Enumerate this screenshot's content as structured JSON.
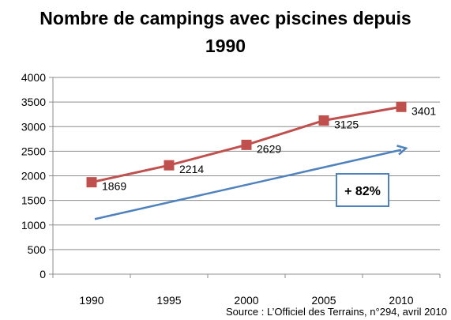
{
  "chart_data": {
    "type": "line",
    "title_line1": "Nombre de campings avec piscines depuis",
    "title_line2": "1990",
    "x": [
      "1990",
      "1995",
      "2000",
      "2005",
      "2010"
    ],
    "series": [
      {
        "values": [
          1869,
          2214,
          2629,
          3125,
          3401
        ],
        "color": "#C0504D"
      }
    ],
    "data_labels": [
      "1869",
      "2214",
      "2629",
      "3125",
      "3401"
    ],
    "ylim": [
      0,
      4000
    ],
    "yticks": [
      "0",
      "500",
      "1000",
      "1500",
      "2000",
      "2500",
      "3000",
      "3500",
      "4000"
    ],
    "grid": true,
    "annotation": {
      "text": "+ 82%",
      "arrow_color": "#4F81BD",
      "arrow_from": {
        "x": "1990",
        "y": 1120
      },
      "arrow_to": {
        "x": "2010",
        "y": 2560
      }
    },
    "source": "Source : L’Officiel des Terrains, n°294, avril 2010"
  }
}
